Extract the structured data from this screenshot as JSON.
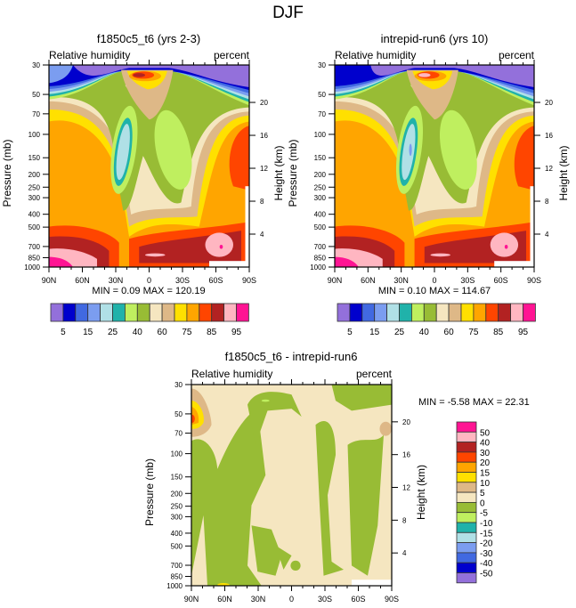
{
  "figure_title": "DJF",
  "colors": {
    "rh_levels": [
      "#9370DB",
      "#0000CD",
      "#4169E1",
      "#7B9DF0",
      "#B0E0E6",
      "#20B2AA",
      "#BFEF5F",
      "#98BC35",
      "#F5E6C0",
      "#DEB887",
      "#FFE000",
      "#FFA500",
      "#FF4500",
      "#B22222",
      "#FFB6C1",
      "#FF1493"
    ],
    "diff_levels": [
      "#9370DB",
      "#0000CD",
      "#4169E1",
      "#7B9DF0",
      "#B0E0E6",
      "#20B2AA",
      "#BFEF5F",
      "#98BC35",
      "#F5E6C0",
      "#DEB887",
      "#FFE000",
      "#FFA500",
      "#FF4500",
      "#B22222",
      "#FFB6C1",
      "#FF1493"
    ]
  },
  "chart_data": [
    {
      "type": "heatmap",
      "subtype": "filled-contour latitude-pressure cross section",
      "title": "f1850c5_t6 (yrs 2-3)",
      "left_string": "Relative humidity",
      "right_string": "percent",
      "xlabel": "",
      "ylabel": "Pressure (mb)",
      "ylabel_right": "Height (km)",
      "x_ticks": [
        "90N",
        "60N",
        "30N",
        "0",
        "30S",
        "60S",
        "90S"
      ],
      "y_ticks": [
        "30",
        "50",
        "70",
        "100",
        "150",
        "200",
        "250",
        "300",
        "400",
        "500",
        "700",
        "850",
        "1000"
      ],
      "y_ticks_right": [
        "20",
        "16",
        "12",
        "8",
        "4"
      ],
      "xlim": [
        "90N",
        "90S"
      ],
      "ylim_mb": [
        1000,
        30
      ],
      "stats": "MIN =   0.09  MAX = 120.19",
      "min": 0.09,
      "max": 120.19,
      "colorbar_labels": [
        "5",
        "15",
        "25",
        "40",
        "60",
        "75",
        "85",
        "95"
      ],
      "colorbar_levels": [
        5,
        10,
        15,
        20,
        25,
        30,
        40,
        50,
        60,
        70,
        75,
        80,
        85,
        90,
        95
      ],
      "colorbar_orientation": "horizontal"
    },
    {
      "type": "heatmap",
      "subtype": "filled-contour latitude-pressure cross section",
      "title": "intrepid-run6 (yrs 10)",
      "left_string": "Relative humidity",
      "right_string": "percent",
      "xlabel": "",
      "ylabel": "Pressure (mb)",
      "ylabel_right": "Height (km)",
      "x_ticks": [
        "90N",
        "60N",
        "30N",
        "0",
        "30S",
        "60S",
        "90S"
      ],
      "y_ticks": [
        "30",
        "50",
        "70",
        "100",
        "150",
        "200",
        "250",
        "300",
        "400",
        "500",
        "700",
        "850",
        "1000"
      ],
      "y_ticks_right": [
        "20",
        "16",
        "12",
        "8",
        "4"
      ],
      "xlim": [
        "90N",
        "90S"
      ],
      "ylim_mb": [
        1000,
        30
      ],
      "stats": "MIN =   0.10  MAX = 114.67",
      "min": 0.1,
      "max": 114.67,
      "colorbar_labels": [
        "5",
        "15",
        "25",
        "40",
        "60",
        "75",
        "85",
        "95"
      ],
      "colorbar_levels": [
        5,
        10,
        15,
        20,
        25,
        30,
        40,
        50,
        60,
        70,
        75,
        80,
        85,
        90,
        95
      ],
      "colorbar_orientation": "horizontal"
    },
    {
      "type": "heatmap",
      "subtype": "filled-contour latitude-pressure difference",
      "title": "f1850c5_t6 - intrepid-run6",
      "left_string": "Relative humidity",
      "right_string": "percent",
      "xlabel": "",
      "ylabel": "Pressure (mb)",
      "ylabel_right": "Height (km)",
      "x_ticks": [
        "90N",
        "60N",
        "30N",
        "0",
        "30S",
        "60S",
        "90S"
      ],
      "y_ticks": [
        "30",
        "50",
        "70",
        "100",
        "150",
        "200",
        "250",
        "300",
        "400",
        "500",
        "700",
        "850",
        "1000"
      ],
      "y_ticks_right": [
        "20",
        "16",
        "12",
        "8",
        "4"
      ],
      "xlim": [
        "90N",
        "90S"
      ],
      "ylim_mb": [
        1000,
        30
      ],
      "stats": "MIN =  -5.58  MAX =  22.31",
      "min": -5.58,
      "max": 22.31,
      "colorbar_labels": [
        "50",
        "40",
        "30",
        "20",
        "15",
        "10",
        "5",
        "0",
        "-5",
        "-10",
        "-15",
        "-20",
        "-30",
        "-40",
        "-50"
      ],
      "colorbar_levels": [
        -50,
        -40,
        -30,
        -20,
        -15,
        -10,
        -5,
        0,
        5,
        10,
        15,
        20,
        30,
        40,
        50
      ],
      "colorbar_orientation": "vertical"
    }
  ]
}
